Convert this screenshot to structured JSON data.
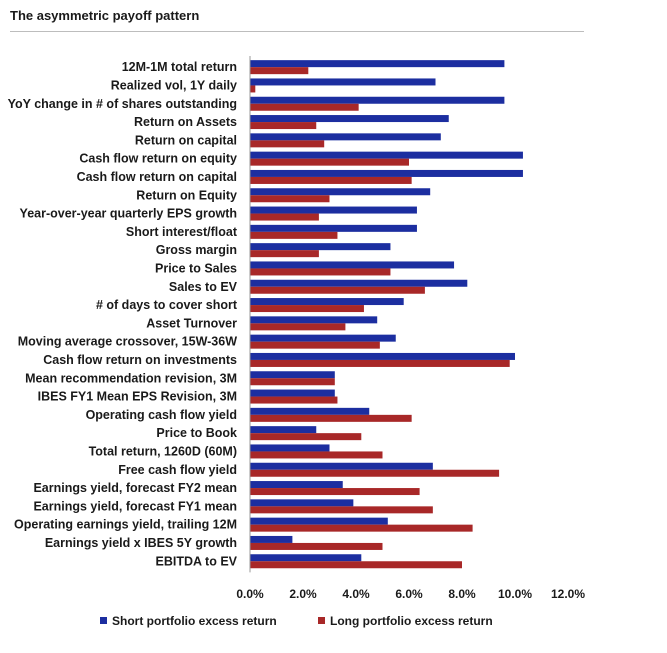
{
  "chart_data": {
    "type": "bar",
    "orientation": "horizontal",
    "title": "The asymmetric payoff pattern",
    "xlabel": "",
    "ylabel": "",
    "xlim": [
      0,
      12
    ],
    "xticks": [
      0,
      2,
      4,
      6,
      8,
      10,
      12
    ],
    "xtick_labels": [
      "0.0%",
      "2.0%",
      "4.0%",
      "6.0%",
      "8.0%",
      "10.0%",
      "12.0%"
    ],
    "grid": false,
    "legend_position": "bottom",
    "categories": [
      "12M-1M total return",
      "Realized vol, 1Y daily",
      "YoY change in # of shares outstanding",
      "Return on Assets",
      "Return on capital",
      "Cash flow return on equity",
      "Cash flow return on capital",
      "Return on Equity",
      "Year-over-year quarterly EPS growth",
      "Short interest/float",
      "Gross margin",
      "Price to Sales",
      "Sales to EV",
      "# of days to cover short",
      "Asset Turnover",
      "Moving average crossover, 15W-36W",
      "Cash flow return on investments",
      "Mean recommendation revision, 3M",
      "IBES FY1 Mean EPS Revision, 3M",
      "Operating cash flow yield",
      "Price to Book",
      "Total return, 1260D (60M)",
      "Free cash flow yield",
      "Earnings yield, forecast FY2 mean",
      "Earnings yield, forecast FY1 mean",
      "Operating earnings yield, trailing 12M",
      "Earnings yield x IBES 5Y growth",
      "EBITDA to EV"
    ],
    "series": [
      {
        "name": "Short portfolio excess return",
        "color": "#1c2ea0",
        "values": [
          9.6,
          7.0,
          9.6,
          7.5,
          7.2,
          10.3,
          10.3,
          6.8,
          6.3,
          6.3,
          5.3,
          7.7,
          8.2,
          5.8,
          4.8,
          5.5,
          10.0,
          3.2,
          3.2,
          4.5,
          2.5,
          3.0,
          6.9,
          3.5,
          3.9,
          5.2,
          1.6,
          4.2
        ]
      },
      {
        "name": "Long portfolio excess return",
        "color": "#a82828",
        "values": [
          2.2,
          0.2,
          4.1,
          2.5,
          2.8,
          6.0,
          6.1,
          3.0,
          2.6,
          3.3,
          2.6,
          5.3,
          6.6,
          4.3,
          3.6,
          4.9,
          9.8,
          3.2,
          3.3,
          6.1,
          4.2,
          5.0,
          9.4,
          6.4,
          6.9,
          8.4,
          5.0,
          8.0
        ]
      }
    ]
  }
}
